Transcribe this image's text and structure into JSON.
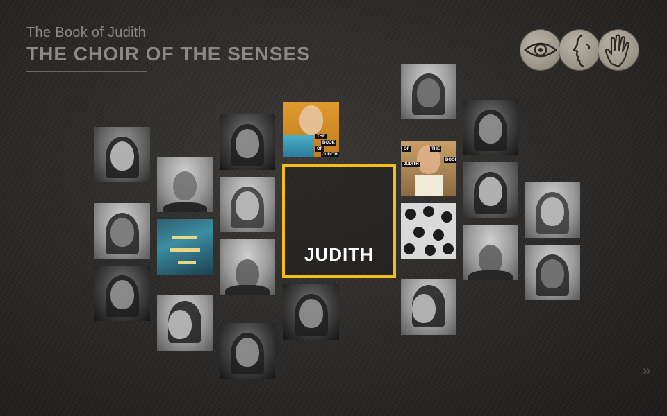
{
  "header": {
    "subtitle": "The Book of Judith",
    "title": "THE CHOIR OF THE SENSES"
  },
  "senses": {
    "items": [
      {
        "icon": "eye-icon"
      },
      {
        "icon": "face-profile-icon"
      },
      {
        "icon": "hand-icon"
      }
    ]
  },
  "grid": {
    "center": {
      "label": "JUDITH",
      "border_color": "#f2be1d"
    },
    "book_tag_left": {
      "line1": "THE",
      "line2": "BOOK",
      "line3": "OF",
      "line4": "JUDITH"
    },
    "book_tag_right": {
      "line1": "OF",
      "line2": "THE",
      "line3": "JUDITH",
      "line4": "BOOK"
    }
  },
  "nav": {
    "next_glyph": "»"
  }
}
